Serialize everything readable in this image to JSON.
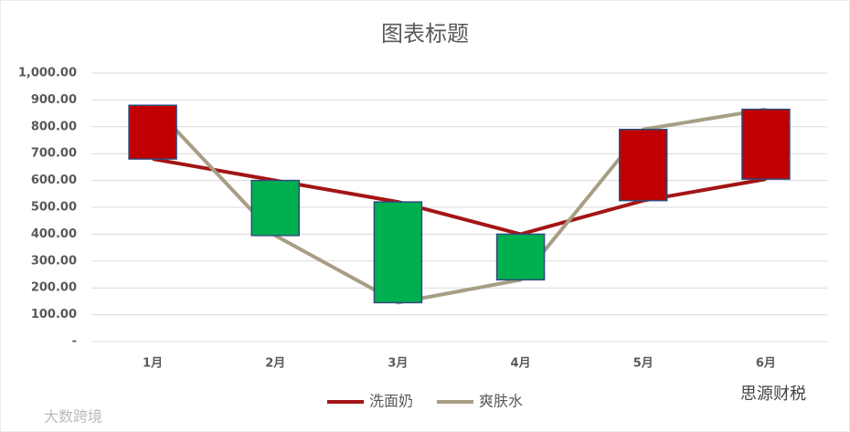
{
  "chart_data": {
    "type": "line",
    "title": "图表标题",
    "categories": [
      "1月",
      "2月",
      "3月",
      "4月",
      "5月",
      "6月"
    ],
    "series": [
      {
        "name": "洗面奶",
        "color": "#a31515",
        "values": [
          680,
          600,
          520,
          400,
          525,
          605
        ]
      },
      {
        "name": "爽肤水",
        "color": "#a89e85",
        "values": [
          880,
          395,
          145,
          230,
          790,
          865
        ]
      }
    ],
    "up_down_bars": true,
    "up_bar_color": "#c00000",
    "down_bar_color": "#00b050",
    "ylim": [
      0,
      1000
    ],
    "yticks": [
      {
        "value": 0,
        "label": "-"
      },
      {
        "value": 100,
        "label": "100.00"
      },
      {
        "value": 200,
        "label": "200.00"
      },
      {
        "value": 300,
        "label": "300.00"
      },
      {
        "value": 400,
        "label": "400.00"
      },
      {
        "value": 500,
        "label": "500.00"
      },
      {
        "value": 600,
        "label": "600.00"
      },
      {
        "value": 700,
        "label": "700.00"
      },
      {
        "value": 800,
        "label": "800.00"
      },
      {
        "value": 900,
        "label": "900.00"
      },
      {
        "value": 1000,
        "label": "1,000.00"
      }
    ],
    "grid": true,
    "legend": "bottom",
    "watermarks": [
      "大数跨境",
      "思源财税"
    ]
  }
}
